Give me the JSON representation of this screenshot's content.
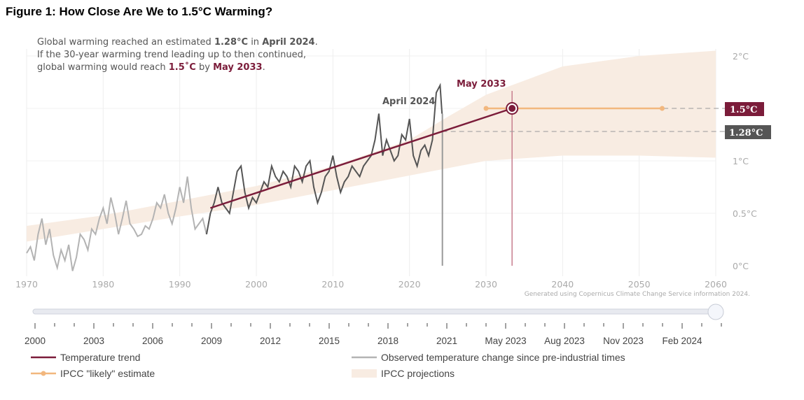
{
  "title": "Figure 1: How Close Are We to 1.5°C Warming?",
  "annotation": {
    "line1_a": "Global warming reached an estimated ",
    "line1_b": "1.28°C",
    "line1_c": " in ",
    "line1_d": "April 2024",
    "line1_e": ".",
    "line2": "If the 30-year warming trend leading up to then continued,",
    "line3_a": "global warming would reach ",
    "line3_b": "1.5˚C",
    "line3_c": " by ",
    "line3_d": "May 2033",
    "line3_e": "."
  },
  "callouts": {
    "april": "April 2024",
    "may": "May 2033",
    "box15": "1.5°C",
    "box128": "1.28°C"
  },
  "credit": "Generated using Copernicus Climate Change Service information 2024.",
  "colors": {
    "trend": "#7b1c3a",
    "observed_old": "#b3b3b3",
    "observed_recent": "#555555",
    "likely": "#f2b77e",
    "band": "#f8ece2",
    "box128": "#555555"
  },
  "chart_data": {
    "type": "line",
    "title": "How Close Are We to 1.5°C Warming?",
    "xlim": [
      1970,
      2060
    ],
    "ylim": [
      0,
      2
    ],
    "x_ticks": [
      "1970",
      "1980",
      "1990",
      "2000",
      "2010",
      "2020",
      "2030",
      "2040",
      "2050",
      "2060"
    ],
    "y_ticks": [
      "0°C",
      "0.5°C",
      "1°C",
      "1.5°C",
      "2°C"
    ],
    "grid": true,
    "observed": {
      "name": "Observed temperature change since pre-industrial times",
      "start": 1970,
      "step": 0.5,
      "highlight_from": 1994,
      "values": [
        0.12,
        0.18,
        0.05,
        0.3,
        0.45,
        0.2,
        0.35,
        0.1,
        -0.02,
        0.15,
        0.05,
        0.2,
        -0.05,
        0.08,
        0.3,
        0.25,
        0.15,
        0.35,
        0.3,
        0.45,
        0.55,
        0.4,
        0.65,
        0.5,
        0.3,
        0.45,
        0.62,
        0.4,
        0.35,
        0.28,
        0.3,
        0.38,
        0.35,
        0.45,
        0.6,
        0.55,
        0.68,
        0.5,
        0.4,
        0.55,
        0.75,
        0.6,
        0.85,
        0.55,
        0.35,
        0.4,
        0.45,
        0.3,
        0.5,
        0.6,
        0.75,
        0.6,
        0.55,
        0.5,
        0.7,
        0.9,
        0.95,
        0.7,
        0.55,
        0.65,
        0.6,
        0.7,
        0.8,
        0.75,
        0.95,
        0.85,
        0.8,
        0.9,
        0.85,
        0.75,
        0.95,
        0.9,
        0.8,
        0.95,
        1.0,
        0.75,
        0.6,
        0.7,
        0.85,
        0.9,
        1.05,
        0.85,
        0.7,
        0.8,
        0.85,
        0.95,
        0.9,
        0.85,
        0.95,
        1.0,
        1.05,
        1.2,
        1.45,
        1.05,
        1.2,
        1.1,
        1.0,
        1.05,
        1.25,
        1.2,
        1.4,
        1.05,
        0.95,
        1.1,
        1.15,
        1.05,
        1.2,
        1.65,
        1.72
      ],
      "end_point": [
        2024.25,
        1.45
      ]
    },
    "trend": {
      "name": "Temperature trend",
      "x": [
        1994,
        2033.4
      ],
      "y": [
        0.55,
        1.5
      ]
    },
    "likely": {
      "name": "IPCC \"likely\" estimate",
      "x": [
        2030,
        2053
      ],
      "y": 1.5
    },
    "band": {
      "name": "IPCC projections",
      "x": [
        1970,
        1980,
        1990,
        2000,
        2010,
        2020,
        2025,
        2030,
        2040,
        2050,
        2060
      ],
      "lower": [
        0.23,
        0.35,
        0.47,
        0.58,
        0.72,
        0.86,
        0.93,
        1.0,
        1.05,
        1.05,
        1.03
      ],
      "upper": [
        0.38,
        0.48,
        0.62,
        0.76,
        0.95,
        1.2,
        1.42,
        1.63,
        1.9,
        2.0,
        2.05
      ]
    },
    "markers": {
      "april_2024": {
        "x": 2024.3,
        "y": 1.28
      },
      "may_2033": {
        "x": 2033.4,
        "y": 1.5
      }
    }
  },
  "slider": {
    "labels": [
      "2000",
      "2003",
      "2006",
      "2009",
      "2012",
      "2015",
      "2018",
      "2021",
      "May 2023",
      "Aug 2023",
      "Nov 2023",
      "Feb 2024"
    ],
    "position": 1.0
  },
  "legend": {
    "trend": "Temperature trend",
    "observed": "Observed temperature change since pre-industrial times",
    "likely": "IPCC \"likely\" estimate",
    "band": "IPCC projections"
  }
}
